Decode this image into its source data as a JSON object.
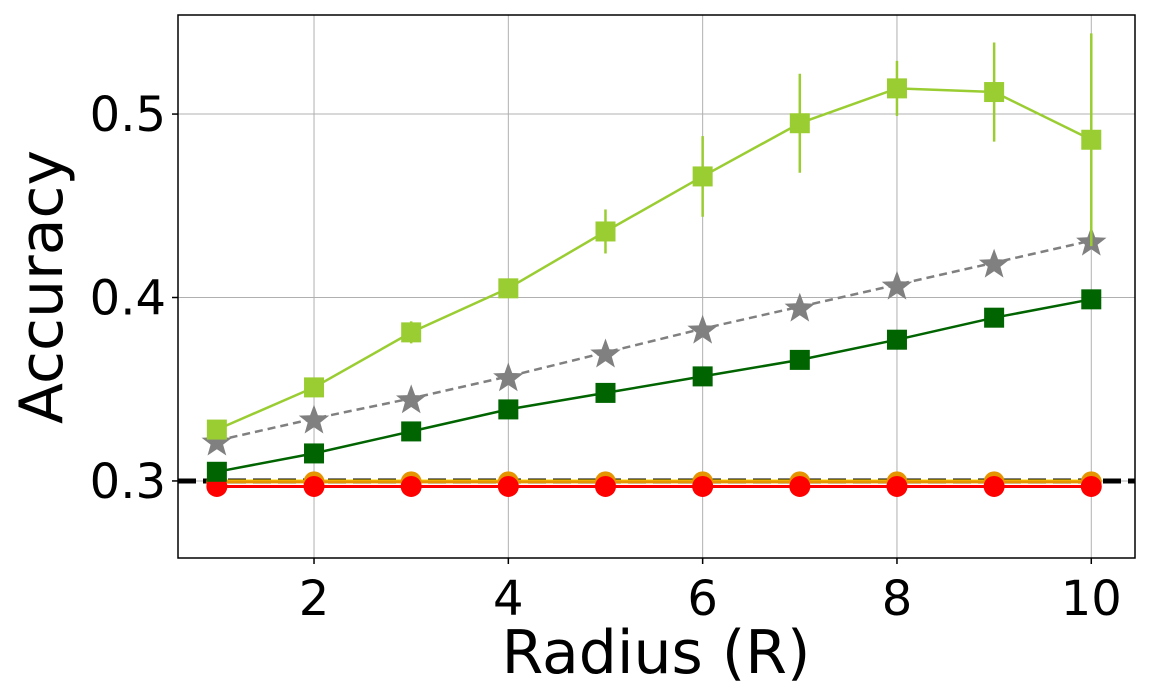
{
  "chart_data": {
    "type": "line",
    "xlabel": "Radius (R)",
    "ylabel": "Accuracy",
    "xlim": [
      0.6,
      10.45
    ],
    "ylim": [
      0.258,
      0.554
    ],
    "xticks": [
      2,
      4,
      6,
      8,
      10
    ],
    "yticks": [
      0.3,
      0.4,
      0.5
    ],
    "xtick_labels": [
      "2",
      "4",
      "6",
      "8",
      "10"
    ],
    "ytick_labels": [
      "0.3",
      "0.4",
      "0.5"
    ],
    "grid": true,
    "x": [
      1,
      2,
      3,
      4,
      5,
      6,
      7,
      8,
      9,
      10
    ],
    "baseline": {
      "y": 0.3,
      "color": "#000000",
      "style": "dashed"
    },
    "series": [
      {
        "color": "#9acd32",
        "marker": "square",
        "line": "solid",
        "values": [
          0.328,
          0.351,
          0.381,
          0.405,
          0.436,
          0.466,
          0.495,
          0.514,
          0.512,
          0.486
        ],
        "errors": [
          0.002,
          0.003,
          0.006,
          0.004,
          0.012,
          0.022,
          0.027,
          0.015,
          0.027,
          0.058
        ]
      },
      {
        "color": "#808080",
        "marker": "star",
        "line": "dashed",
        "values": [
          0.322,
          0.334,
          0.345,
          0.357,
          0.37,
          0.383,
          0.395,
          0.407,
          0.419,
          0.431
        ]
      },
      {
        "color": "#006400",
        "marker": "square",
        "line": "solid",
        "values": [
          0.305,
          0.315,
          0.327,
          0.339,
          0.348,
          0.357,
          0.366,
          0.377,
          0.389,
          0.399
        ]
      },
      {
        "color": "#ffd700",
        "marker": "none",
        "line": "solid",
        "values": [
          0.3,
          0.3,
          0.3,
          0.3,
          0.3,
          0.3,
          0.3,
          0.3,
          0.3,
          0.3
        ]
      },
      {
        "color": "#e69500",
        "marker": "circle",
        "line": "solid",
        "values": [
          0.2995,
          0.2995,
          0.2995,
          0.2995,
          0.2995,
          0.2995,
          0.2995,
          0.2995,
          0.2995,
          0.2995
        ]
      },
      {
        "color": "#ff0000",
        "marker": "circle",
        "line": "solid",
        "values": [
          0.297,
          0.297,
          0.297,
          0.297,
          0.297,
          0.297,
          0.297,
          0.297,
          0.297,
          0.297
        ]
      }
    ]
  }
}
